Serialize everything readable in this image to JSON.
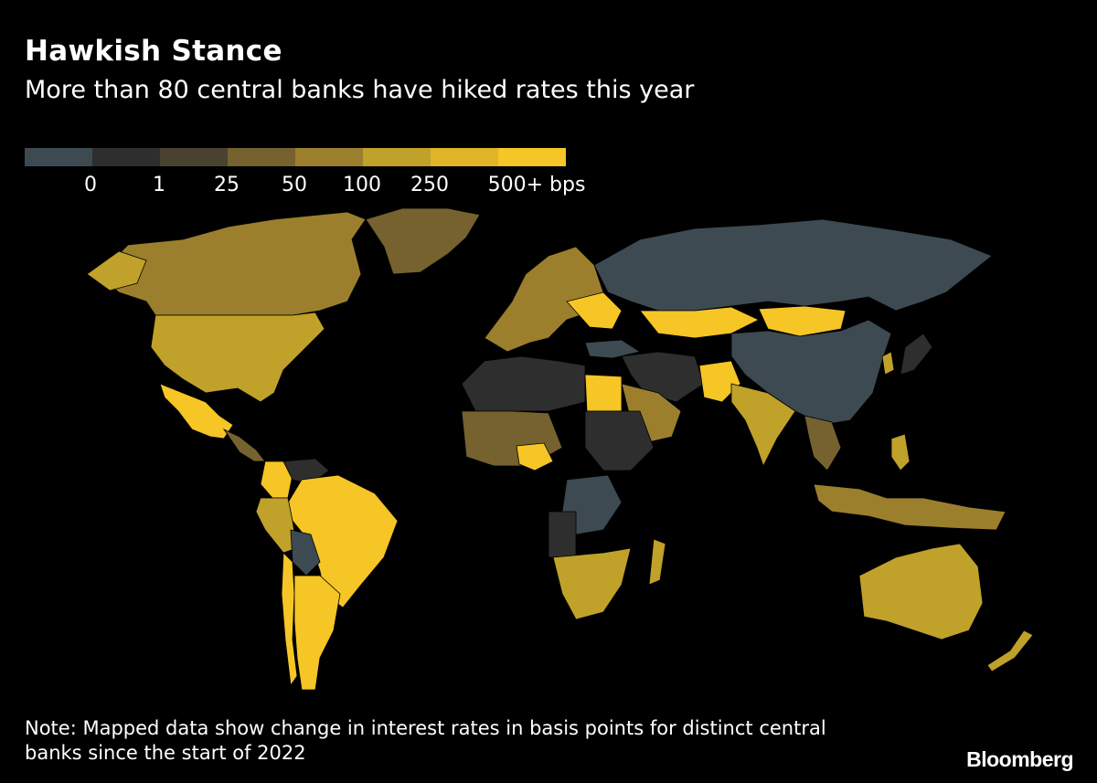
{
  "header": {
    "title": "Hawkish Stance",
    "subtitle": "More than 80 central banks have hiked rates this year"
  },
  "legend": {
    "colors": [
      "#3d4a52",
      "#2e2e2e",
      "#4a4230",
      "#75622e",
      "#9b7f2c",
      "#c0a12a",
      "#e0b527",
      "#f6c526"
    ],
    "labels": [
      "0",
      "1",
      "25",
      "50",
      "100",
      "250",
      "500+ bps"
    ]
  },
  "map_regions": [
    {
      "name": "Canada",
      "bin": "100"
    },
    {
      "name": "United States",
      "bin": "250"
    },
    {
      "name": "Mexico",
      "bin": "500+"
    },
    {
      "name": "Greenland",
      "bin": "50"
    },
    {
      "name": "Colombia",
      "bin": "500+"
    },
    {
      "name": "Brazil",
      "bin": "500+"
    },
    {
      "name": "Peru",
      "bin": "250"
    },
    {
      "name": "Bolivia",
      "bin": "0"
    },
    {
      "name": "Argentina",
      "bin": "500+"
    },
    {
      "name": "Chile",
      "bin": "500+"
    },
    {
      "name": "Venezuela",
      "bin": "1"
    },
    {
      "name": "Russia",
      "bin": "0"
    },
    {
      "name": "China",
      "bin": "0"
    },
    {
      "name": "Kazakhstan",
      "bin": "500+"
    },
    {
      "name": "Mongolia",
      "bin": "500+"
    },
    {
      "name": "India",
      "bin": "250"
    },
    {
      "name": "Pakistan",
      "bin": "500+"
    },
    {
      "name": "Saudi Arabia",
      "bin": "100"
    },
    {
      "name": "Egypt",
      "bin": "500+"
    },
    {
      "name": "Nigeria",
      "bin": "500+"
    },
    {
      "name": "DR Congo",
      "bin": "0"
    },
    {
      "name": "Australia",
      "bin": "250"
    },
    {
      "name": "New Zealand",
      "bin": "250"
    },
    {
      "name": "Japan",
      "bin": "1"
    },
    {
      "name": "Indonesia",
      "bin": "100"
    },
    {
      "name": "Turkey",
      "bin": "0"
    }
  ],
  "note": "Note: Mapped data show change in interest rates in basis points for distinct central banks since the start of 2022",
  "brand": "Bloomberg"
}
